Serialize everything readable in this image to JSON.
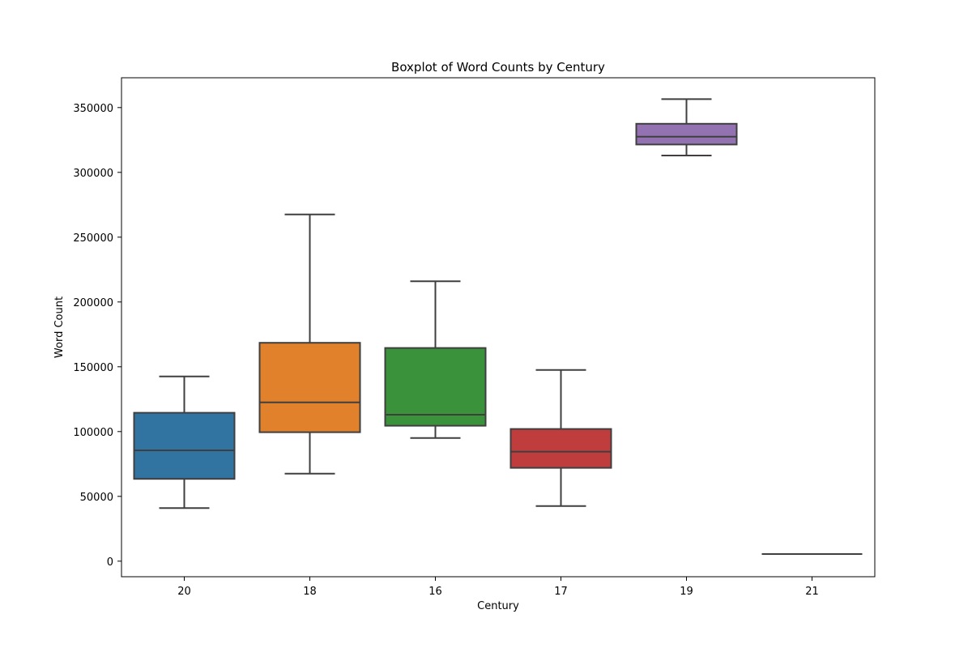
{
  "chart_data": {
    "type": "boxplot",
    "title": "Boxplot of Word Counts by Century",
    "xlabel": "Century",
    "ylabel": "Word Count",
    "ylim": [
      -12000,
      373000
    ],
    "yticks": [
      0,
      50000,
      100000,
      150000,
      200000,
      250000,
      300000,
      350000
    ],
    "ytick_labels": [
      "0",
      "50000",
      "100000",
      "150000",
      "200000",
      "250000",
      "300000",
      "350000"
    ],
    "grid": false,
    "legend": "none",
    "categories": [
      "20",
      "18",
      "16",
      "17",
      "19",
      "21"
    ],
    "boxes": [
      {
        "category": "20",
        "whisker_low": 41000,
        "q1": 63500,
        "median": 85500,
        "q3": 114500,
        "whisker_high": 142500,
        "color": "#3274a1"
      },
      {
        "category": "18",
        "whisker_low": 67500,
        "q1": 99500,
        "median": 122500,
        "q3": 168500,
        "whisker_high": 267500,
        "color": "#e1812c"
      },
      {
        "category": "16",
        "whisker_low": 95000,
        "q1": 104500,
        "median": 113000,
        "q3": 164500,
        "whisker_high": 216000,
        "color": "#3a923a"
      },
      {
        "category": "17",
        "whisker_low": 42500,
        "q1": 72000,
        "median": 84500,
        "q3": 102000,
        "whisker_high": 147500,
        "color": "#c03d3e"
      },
      {
        "category": "19",
        "whisker_low": 313000,
        "q1": 321500,
        "median": 327500,
        "q3": 337500,
        "whisker_high": 356500,
        "color": "#9372b2"
      },
      {
        "category": "21",
        "whisker_low": 5500,
        "q1": 5500,
        "median": 5500,
        "q3": 5500,
        "whisker_high": 5500,
        "color": "#845b53"
      }
    ]
  }
}
